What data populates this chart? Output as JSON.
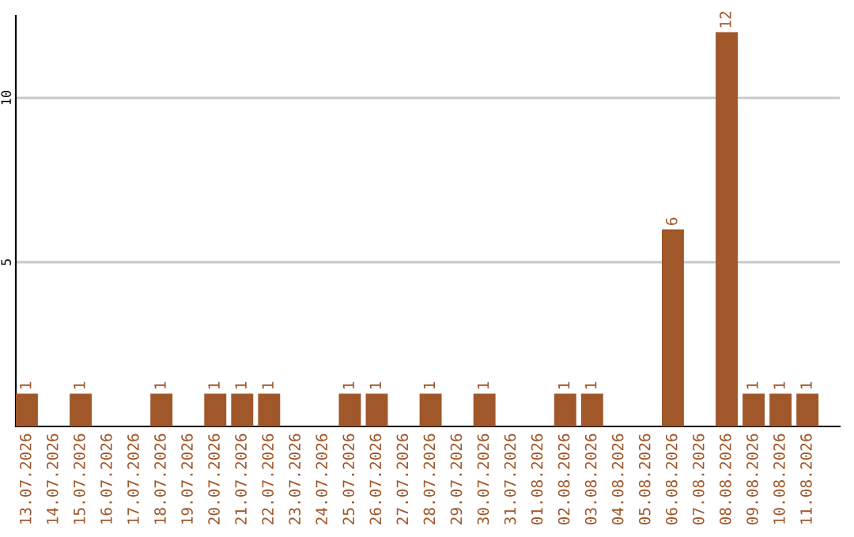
{
  "chart_data": {
    "type": "bar",
    "categories": [
      "13.07.2026",
      "14.07.2026",
      "15.07.2026",
      "16.07.2026",
      "17.07.2026",
      "18.07.2026",
      "19.07.2026",
      "20.07.2026",
      "21.07.2026",
      "22.07.2026",
      "23.07.2026",
      "24.07.2026",
      "25.07.2026",
      "26.07.2026",
      "27.07.2026",
      "28.07.2026",
      "29.07.2026",
      "30.07.2026",
      "31.07.2026",
      "01.08.2026",
      "02.08.2026",
      "03.08.2026",
      "04.08.2026",
      "05.08.2026",
      "06.08.2026",
      "07.08.2026",
      "08.08.2026",
      "09.08.2026",
      "10.08.2026",
      "11.08.2026"
    ],
    "values": [
      1,
      0,
      1,
      0,
      0,
      1,
      0,
      1,
      1,
      1,
      0,
      0,
      1,
      1,
      0,
      1,
      0,
      1,
      0,
      0,
      1,
      1,
      0,
      0,
      6,
      0,
      12,
      1,
      1,
      1
    ],
    "value_labels": [
      "1",
      null,
      "1",
      null,
      null,
      "1",
      null,
      "1",
      "1",
      "1",
      null,
      null,
      "1",
      "1",
      null,
      "1",
      null,
      "1",
      null,
      null,
      "1",
      "1",
      null,
      null,
      "6",
      null,
      "12",
      "1",
      "1",
      "1"
    ],
    "color": "#a0572a",
    "ylim": [
      0,
      12.5
    ],
    "yticks": [
      5,
      10
    ],
    "grid": "y"
  }
}
